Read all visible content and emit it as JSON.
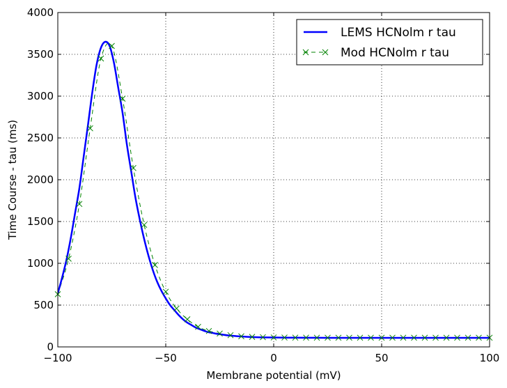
{
  "chart_data": {
    "type": "line",
    "xlabel": "Membrane potential (mV)",
    "ylabel": "Time Course - tau (ms)",
    "xlim": [
      -100,
      100
    ],
    "ylim": [
      0,
      4000
    ],
    "xticks": [
      -100,
      -50,
      0,
      50,
      100
    ],
    "xtick_labels": [
      "−100",
      "−50",
      "0",
      "50",
      "100"
    ],
    "yticks": [
      0,
      500,
      1000,
      1500,
      2000,
      2500,
      3000,
      3500,
      4000
    ],
    "ytick_labels": [
      "0",
      "500",
      "1000",
      "1500",
      "2000",
      "2500",
      "3000",
      "3500",
      "4000"
    ],
    "grid": true,
    "legend_position": "top-right",
    "series": [
      {
        "name": "LEMS HCNolm r tau",
        "style": "solid-line",
        "color": "#0000ff",
        "x": [
          -100,
          -98,
          -96,
          -94,
          -92,
          -90,
          -88,
          -86,
          -84,
          -82,
          -80,
          -78,
          -76,
          -74,
          -72,
          -70,
          -68,
          -66,
          -64,
          -62,
          -60,
          -58,
          -56,
          -54,
          -52,
          -50,
          -48,
          -46,
          -44,
          -42,
          -40,
          -38,
          -36,
          -34,
          -32,
          -30,
          -28,
          -26,
          -24,
          -22,
          -20,
          -15,
          -10,
          -5,
          0,
          10,
          20,
          30,
          40,
          50,
          60,
          70,
          80,
          90,
          100
        ],
        "y": [
          640,
          830,
          1040,
          1300,
          1600,
          1900,
          2280,
          2660,
          3050,
          3380,
          3580,
          3650,
          3600,
          3400,
          3100,
          2800,
          2420,
          2100,
          1780,
          1520,
          1290,
          1090,
          920,
          780,
          670,
          580,
          500,
          440,
          380,
          330,
          290,
          260,
          230,
          210,
          190,
          175,
          165,
          155,
          148,
          140,
          135,
          125,
          118,
          114,
          112,
          110,
          109,
          108,
          108,
          108,
          108,
          108,
          108,
          108,
          108
        ]
      },
      {
        "name": "Mod HCNolm r tau",
        "style": "dashed-x-markers",
        "color": "#008000",
        "x": [
          -100,
          -95,
          -90,
          -85,
          -80,
          -75,
          -70,
          -65,
          -60,
          -55,
          -50,
          -45,
          -40,
          -35,
          -30,
          -25,
          -20,
          -15,
          -10,
          -5,
          0,
          5,
          10,
          15,
          20,
          25,
          30,
          35,
          40,
          45,
          50,
          55,
          60,
          65,
          70,
          75,
          80,
          85,
          90,
          95,
          100
        ],
        "y": [
          630,
          1055,
          1710,
          2615,
          3450,
          3600,
          2970,
          2140,
          1460,
          980,
          660,
          460,
          330,
          240,
          190,
          160,
          140,
          127,
          120,
          116,
          113,
          112,
          111,
          111,
          110,
          110,
          110,
          110,
          110,
          110,
          110,
          110,
          110,
          110,
          110,
          110,
          110,
          110,
          110,
          110,
          110
        ]
      }
    ]
  }
}
